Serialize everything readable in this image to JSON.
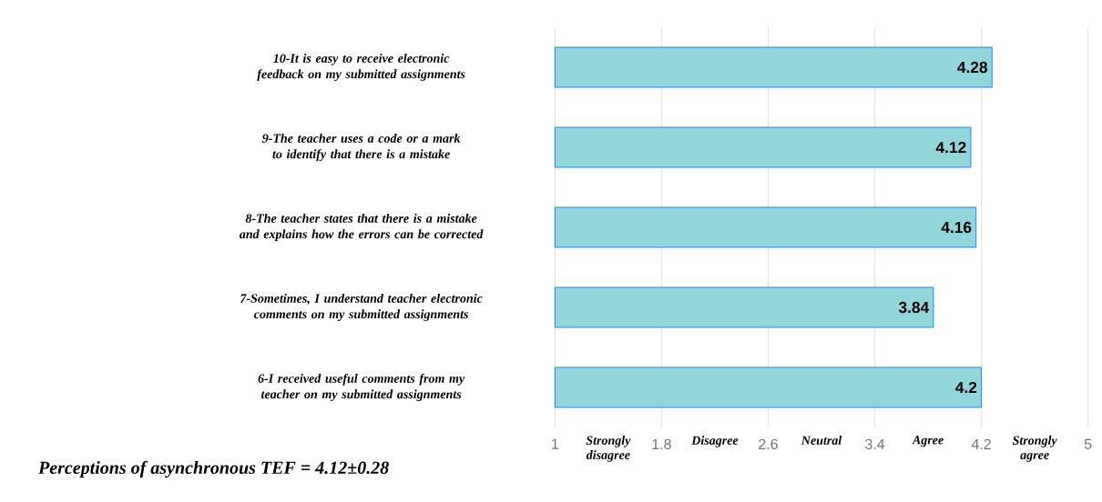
{
  "chart_data": {
    "type": "bar",
    "orientation": "horizontal",
    "categories": [
      "10-It is easy to receive electronic feedback on my submitted assignments",
      "9-The teacher uses a code or a mark to identify that there is a mistake",
      "8-The teacher states that there is a mistake and explains how the errors can be corrected",
      "7-Sometimes, I understand teacher electronic comments on my submitted assignments",
      "6-I received useful comments from my teacher on my submitted assignments"
    ],
    "values": [
      4.28,
      4.12,
      4.16,
      3.84,
      4.2
    ],
    "color": "#92d6dc",
    "data_labels": true,
    "xlim": [
      1,
      5
    ],
    "xticks": [
      1,
      1.8,
      2.6,
      3.4,
      4.2,
      5
    ],
    "grid": "x",
    "annotations": [
      "Strongly disagree",
      "Disagree",
      "Neutral",
      "Agree",
      "Strongly agree",
      "Perceptions of asynchronous TEF = 4.12±0.28"
    ]
  }
}
